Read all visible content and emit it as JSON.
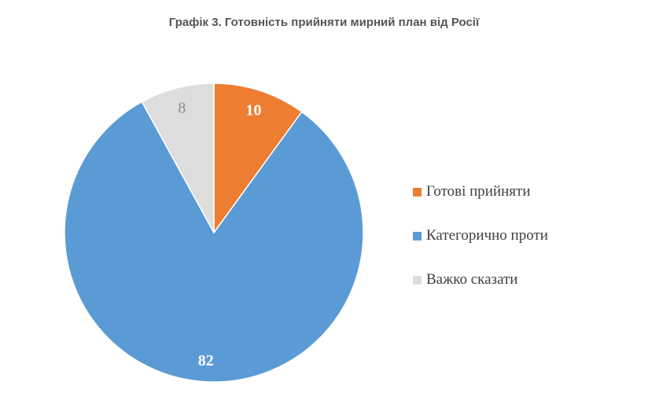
{
  "title": "Графік 3. Готовність прийняти мирний план від Росії",
  "chart_data": {
    "type": "pie",
    "title": "Графік 3. Готовність прийняти мирний план від Росії",
    "categories": [
      "Готові прийняти",
      "Категорично проти",
      "Важко сказати"
    ],
    "values": [
      10,
      82,
      8
    ],
    "colors": [
      "#ED7D31",
      "#5B9BD5",
      "#DDDDDD"
    ],
    "label_colors": [
      "#ffffff",
      "#ffffff",
      "#8c8c8c"
    ],
    "legend_position": "right"
  }
}
